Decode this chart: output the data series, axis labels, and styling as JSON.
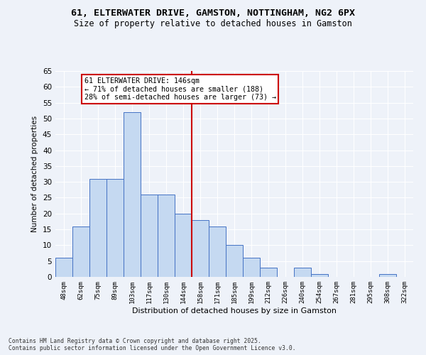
{
  "title": "61, ELTERWATER DRIVE, GAMSTON, NOTTINGHAM, NG2 6PX",
  "subtitle": "Size of property relative to detached houses in Gamston",
  "xlabel": "Distribution of detached houses by size in Gamston",
  "ylabel": "Number of detached properties",
  "categories": [
    "48sqm",
    "62sqm",
    "75sqm",
    "89sqm",
    "103sqm",
    "117sqm",
    "130sqm",
    "144sqm",
    "158sqm",
    "171sqm",
    "185sqm",
    "199sqm",
    "212sqm",
    "226sqm",
    "240sqm",
    "254sqm",
    "267sqm",
    "281sqm",
    "295sqm",
    "308sqm",
    "322sqm"
  ],
  "values": [
    6,
    16,
    31,
    31,
    52,
    26,
    26,
    20,
    18,
    16,
    10,
    6,
    3,
    0,
    3,
    1,
    0,
    0,
    0,
    1,
    0
  ],
  "bar_color": "#c5d9f1",
  "bar_edge_color": "#4472c4",
  "property_line_x": 7.5,
  "property_label": "61 ELTERWATER DRIVE: 146sqm",
  "annotation_line1": "← 71% of detached houses are smaller (188)",
  "annotation_line2": "28% of semi-detached houses are larger (73) →",
  "annotation_box_color": "#ffffff",
  "annotation_box_edge": "#cc0000",
  "vline_color": "#cc0000",
  "ylim": [
    0,
    65
  ],
  "yticks": [
    0,
    5,
    10,
    15,
    20,
    25,
    30,
    35,
    40,
    45,
    50,
    55,
    60,
    65
  ],
  "bg_color": "#eef2f9",
  "grid_color": "#ffffff",
  "footer1": "Contains HM Land Registry data © Crown copyright and database right 2025.",
  "footer2": "Contains public sector information licensed under the Open Government Licence v3.0."
}
